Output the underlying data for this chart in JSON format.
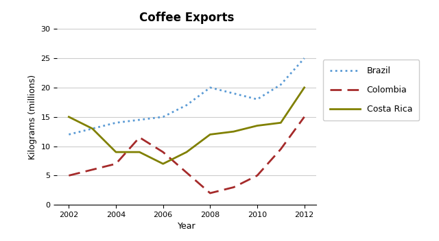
{
  "title": "Coffee Exports",
  "xlabel": "Year",
  "ylabel": "Kilograms (millions)",
  "years": [
    2002,
    2003,
    2004,
    2005,
    2006,
    2007,
    2008,
    2009,
    2010,
    2011,
    2012
  ],
  "brazil": [
    12,
    13,
    14,
    14.5,
    15,
    17,
    20,
    19,
    18,
    20.5,
    25
  ],
  "colombia": [
    5,
    6,
    7,
    11.5,
    9,
    5.5,
    2,
    3,
    5,
    9.5,
    15
  ],
  "costa_rica": [
    15,
    13,
    9,
    9,
    7,
    9,
    12,
    12.5,
    13.5,
    14,
    20
  ],
  "brazil_color": "#5B9BD5",
  "colombia_color": "#A52A2A",
  "costa_rica_color": "#808000",
  "ylim": [
    0,
    30
  ],
  "xlim_min": 2001.5,
  "xlim_max": 2012.5,
  "yticks": [
    0,
    5,
    10,
    15,
    20,
    25,
    30
  ],
  "xticks": [
    2002,
    2004,
    2006,
    2008,
    2010,
    2012
  ],
  "title_fontsize": 12,
  "axis_label_fontsize": 9,
  "tick_fontsize": 8,
  "legend_entries": [
    "Brazil",
    "Colombia",
    "Costa Rica"
  ],
  "background_color": "#FFFFFF",
  "grid_color": "#CCCCCC"
}
